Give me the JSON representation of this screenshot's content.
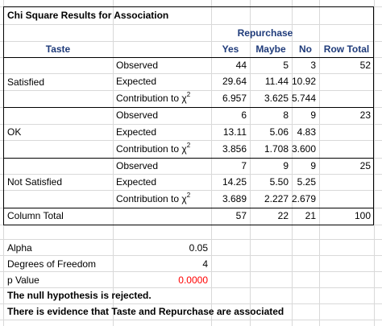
{
  "title": "Chi Square Results for Association",
  "group_header": "Repurchase",
  "columns": {
    "taste": "Taste",
    "yes": "Yes",
    "maybe": "Maybe",
    "no": "No",
    "row_total": "Row Total"
  },
  "stat_labels": {
    "observed": "Observed",
    "expected": "Expected",
    "contribution": "Contribution to χ",
    "contribution_sup": "2"
  },
  "groups": [
    {
      "label": "Satisfied",
      "observed": [
        "44",
        "5",
        "3"
      ],
      "expected": [
        "29.64",
        "11.44",
        "10.92"
      ],
      "contribution": [
        "6.957",
        "3.625",
        "5.744"
      ],
      "row_total": "52"
    },
    {
      "label": "OK",
      "observed": [
        "6",
        "8",
        "9"
      ],
      "expected": [
        "13.11",
        "5.06",
        "4.83"
      ],
      "contribution": [
        "3.856",
        "1.708",
        "3.600"
      ],
      "row_total": "23"
    },
    {
      "label": "Not Satisfied",
      "observed": [
        "7",
        "9",
        "9"
      ],
      "expected": [
        "14.25",
        "5.50",
        "5.25"
      ],
      "contribution": [
        "3.689",
        "2.227",
        "2.679"
      ],
      "row_total": "25"
    }
  ],
  "column_total": {
    "label": "Column Total",
    "values": [
      "57",
      "22",
      "21"
    ],
    "row_total": "100"
  },
  "summary": {
    "alpha_label": "Alpha",
    "alpha": "0.05",
    "df_label": "Degrees of Freedom",
    "df": "4",
    "pvalue_label": "p Value",
    "pvalue": "0.0000",
    "conclusion1": "The null hypothesis is rejected.",
    "conclusion2": "There is evidence that Taste and Repurchase are associated"
  }
}
